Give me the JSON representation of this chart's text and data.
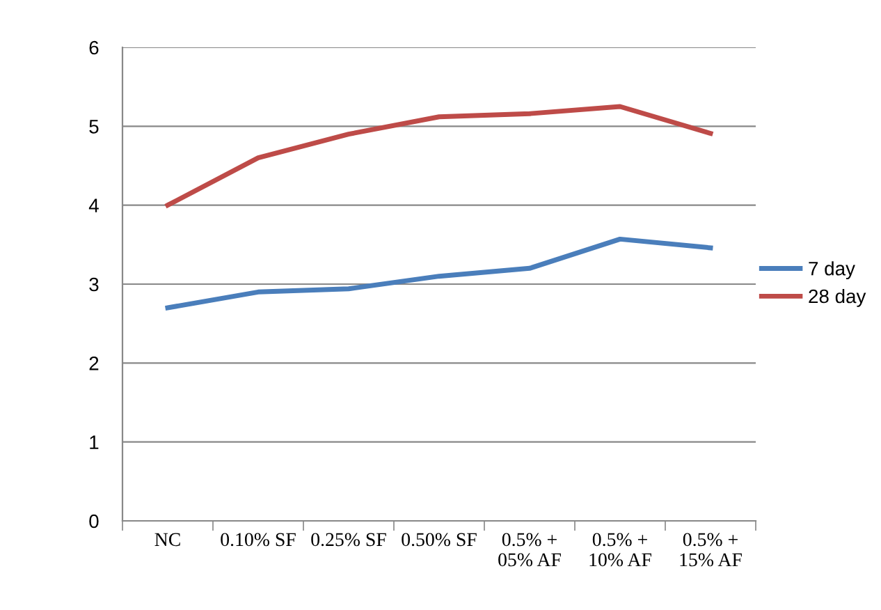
{
  "chart_data": {
    "type": "line",
    "categories": [
      "NC",
      "0.10% SF",
      "0.25% SF",
      "0.50% SF",
      "0.5% +\n05% AF",
      "0.5% +\n10% AF",
      "0.5% +\n15% AF"
    ],
    "series": [
      {
        "name": "7 day",
        "color": "#4a7ebb",
        "values": [
          2.7,
          2.9,
          2.94,
          3.1,
          3.2,
          3.57,
          3.46
        ]
      },
      {
        "name": "28 day",
        "color": "#be4b48",
        "values": [
          4.0,
          4.6,
          4.9,
          5.12,
          5.16,
          5.25,
          4.91
        ]
      }
    ],
    "ylim": [
      0,
      6
    ],
    "yticks": [
      0,
      1,
      2,
      3,
      4,
      5,
      6
    ],
    "grid": "y",
    "legend": "right",
    "marker": "none",
    "line_style": "solid"
  }
}
